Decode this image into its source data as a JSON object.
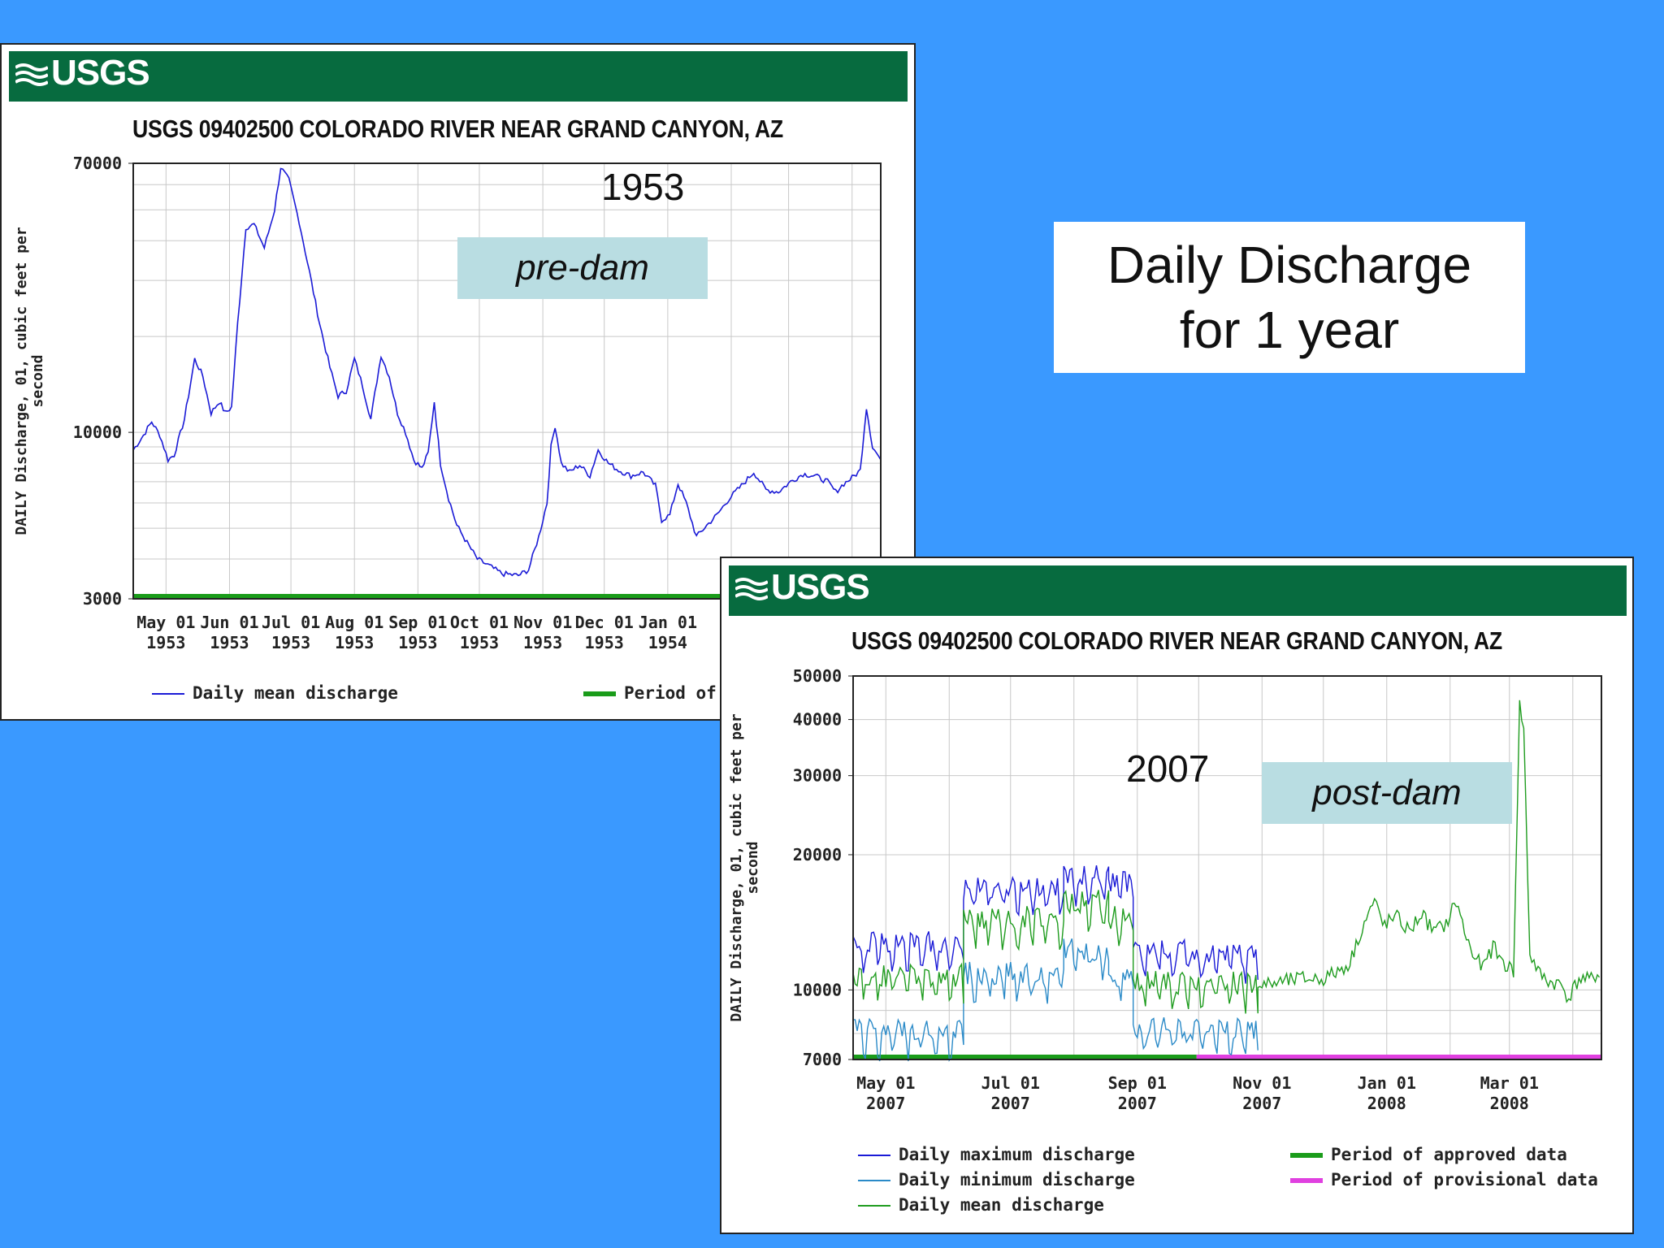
{
  "slide_title": {
    "line1": "Daily Discharge",
    "line2": "for 1 year"
  },
  "logo_text": "USGS",
  "colors": {
    "background": "#3a99ff",
    "usgs_green": "#076b3f",
    "max_series": "#1a1ad6",
    "min_series": "#2a8ac8",
    "mean_series": "#1f9c1f",
    "approved": "#1a9c1a",
    "provisional": "#e040e0",
    "label_box": "#b9dde2"
  },
  "chart_data": [
    {
      "type": "line",
      "station_title": "USGS 09402500 COLORADO RIVER NEAR GRAND CANYON, AZ",
      "year_annotation": "1953",
      "period_annotation": "pre-dam",
      "ylabel_line1": "DAILY Discharge, 01, cubic feet per",
      "ylabel_line2": "second",
      "y_scale": "log",
      "ylim": [
        3000,
        70000
      ],
      "yticks": [
        "70000",
        "10000",
        "3000"
      ],
      "ytick_values": [
        70000,
        10000,
        3000
      ],
      "x_tick_labels": [
        [
          "May 01",
          "1953"
        ],
        [
          "Jun 01",
          "1953"
        ],
        [
          "Jul 01",
          "1953"
        ],
        [
          "Aug 01",
          "1953"
        ],
        [
          "Sep 01",
          "1953"
        ],
        [
          "Oct 01",
          "1953"
        ],
        [
          "Nov 01",
          "1953"
        ],
        [
          "Dec 01",
          "1953"
        ],
        [
          "Jan 01",
          "1954"
        ]
      ],
      "x_range": [
        "1953-04-15",
        "1954-04-15"
      ],
      "grid": true,
      "legend": [
        {
          "label": "Daily mean discharge",
          "color": "#1a1ad6",
          "kind": "line"
        },
        {
          "label": "Period of",
          "color": "#1a9c1a",
          "kind": "bar"
        }
      ],
      "series": [
        {
          "name": "Daily mean discharge",
          "color": "#1a1ad6",
          "points": [
            [
              "1953-04-15",
              8800
            ],
            [
              "1953-04-20",
              9800
            ],
            [
              "1953-04-24",
              10800
            ],
            [
              "1953-04-28",
              9800
            ],
            [
              "1953-05-02",
              8200
            ],
            [
              "1953-05-05",
              8500
            ],
            [
              "1953-05-10",
              11000
            ],
            [
              "1953-05-15",
              17000
            ],
            [
              "1953-05-19",
              15000
            ],
            [
              "1953-05-23",
              11500
            ],
            [
              "1953-05-27",
              12500
            ],
            [
              "1953-05-30",
              11500
            ],
            [
              "1953-06-02",
              12000
            ],
            [
              "1953-06-05",
              22000
            ],
            [
              "1953-06-09",
              44000
            ],
            [
              "1953-06-13",
              45000
            ],
            [
              "1953-06-18",
              38000
            ],
            [
              "1953-06-23",
              50000
            ],
            [
              "1953-06-26",
              68000
            ],
            [
              "1953-06-30",
              62000
            ],
            [
              "1953-07-05",
              46000
            ],
            [
              "1953-07-10",
              32000
            ],
            [
              "1953-07-15",
              22000
            ],
            [
              "1953-07-20",
              16000
            ],
            [
              "1953-07-24",
              13000
            ],
            [
              "1953-07-28",
              13500
            ],
            [
              "1953-08-01",
              17000
            ],
            [
              "1953-08-05",
              14000
            ],
            [
              "1953-08-09",
              11000
            ],
            [
              "1953-08-14",
              17500
            ],
            [
              "1953-08-18",
              15000
            ],
            [
              "1953-08-22",
              11500
            ],
            [
              "1953-08-26",
              10000
            ],
            [
              "1953-08-30",
              8200
            ],
            [
              "1953-09-03",
              7700
            ],
            [
              "1953-09-06",
              8600
            ],
            [
              "1953-09-09",
              12500
            ],
            [
              "1953-09-12",
              8000
            ],
            [
              "1953-09-16",
              6200
            ],
            [
              "1953-09-20",
              5100
            ],
            [
              "1953-09-25",
              4500
            ],
            [
              "1953-09-30",
              4000
            ],
            [
              "1953-10-06",
              3800
            ],
            [
              "1953-10-12",
              3600
            ],
            [
              "1953-10-20",
              3550
            ],
            [
              "1953-10-25",
              3700
            ],
            [
              "1953-10-30",
              4700
            ],
            [
              "1953-11-03",
              6000
            ],
            [
              "1953-11-05",
              9000
            ],
            [
              "1953-11-07",
              10500
            ],
            [
              "1953-11-10",
              8000
            ],
            [
              "1953-11-14",
              7500
            ],
            [
              "1953-11-19",
              7900
            ],
            [
              "1953-11-24",
              7300
            ],
            [
              "1953-11-28",
              8800
            ],
            [
              "1953-12-03",
              8000
            ],
            [
              "1953-12-08",
              7600
            ],
            [
              "1953-12-14",
              7300
            ],
            [
              "1953-12-20",
              7500
            ],
            [
              "1953-12-26",
              6800
            ],
            [
              "1953-12-29",
              5300
            ],
            [
              "1954-01-02",
              5500
            ],
            [
              "1954-01-06",
              6900
            ],
            [
              "1954-01-10",
              6000
            ],
            [
              "1954-01-15",
              4700
            ],
            [
              "1954-01-20",
              5100
            ],
            [
              "1954-01-25",
              5500
            ],
            [
              "1954-01-31",
              6200
            ],
            [
              "1954-02-06",
              6800
            ],
            [
              "1954-02-12",
              7500
            ],
            [
              "1954-02-18",
              6600
            ],
            [
              "1954-02-24",
              6500
            ],
            [
              "1954-03-02",
              7000
            ],
            [
              "1954-03-08",
              7400
            ],
            [
              "1954-03-14",
              7300
            ],
            [
              "1954-03-20",
              7000
            ],
            [
              "1954-03-24",
              6500
            ],
            [
              "1954-03-28",
              6900
            ],
            [
              "1954-04-01",
              7200
            ],
            [
              "1954-04-05",
              7600
            ],
            [
              "1954-04-08",
              12000
            ],
            [
              "1954-04-11",
              9000
            ],
            [
              "1954-04-15",
              8200
            ]
          ]
        }
      ],
      "approved_period": [
        "1953-04-15",
        "1954-04-15"
      ]
    },
    {
      "type": "line",
      "station_title": "USGS 09402500 COLORADO RIVER NEAR GRAND CANYON, AZ",
      "year_annotation": "2007",
      "period_annotation": "post-dam",
      "ylabel_line1": "DAILY Discharge, 01, cubic feet per",
      "ylabel_line2": "second",
      "y_scale": "log",
      "ylim": [
        7000,
        50000
      ],
      "yticks": [
        "50000",
        "40000",
        "30000",
        "20000",
        "10000",
        "7000"
      ],
      "ytick_values": [
        50000,
        40000,
        30000,
        20000,
        10000,
        7000
      ],
      "x_tick_labels": [
        [
          "May 01",
          "2007"
        ],
        [
          "Jul 01",
          "2007"
        ],
        [
          "Sep 01",
          "2007"
        ],
        [
          "Nov 01",
          "2007"
        ],
        [
          "Jan 01",
          "2008"
        ],
        [
          "Mar 01",
          "2008"
        ]
      ],
      "x_range": [
        "2007-04-15",
        "2008-04-15"
      ],
      "grid": true,
      "legend": [
        {
          "label": "Daily maximum discharge",
          "color": "#1a1ad6",
          "kind": "line"
        },
        {
          "label": "Daily minimum discharge",
          "color": "#2a8ac8",
          "kind": "line"
        },
        {
          "label": "Daily mean discharge",
          "color": "#1f9c1f",
          "kind": "line"
        },
        {
          "label": "Period of approved data",
          "color": "#1a9c1a",
          "kind": "bar"
        },
        {
          "label": "Period of provisional data",
          "color": "#e040e0",
          "kind": "bar"
        }
      ],
      "segments": [
        {
          "start": "2007-04-15",
          "end": "2007-06-08",
          "max": 12800,
          "mean": 10800,
          "min": 8200,
          "amp": 1
        },
        {
          "start": "2007-06-08",
          "end": "2007-07-27",
          "max": 16800,
          "mean": 14500,
          "min": 10900,
          "amp": 1
        },
        {
          "start": "2007-07-27",
          "end": "2007-08-18",
          "max": 18000,
          "mean": 15800,
          "min": 12300,
          "amp": 1
        },
        {
          "start": "2007-08-18",
          "end": "2007-08-30",
          "max": 17500,
          "mean": 14500,
          "min": 10800,
          "amp": 1
        },
        {
          "start": "2007-08-30",
          "end": "2007-10-30",
          "max": 12200,
          "mean": 10400,
          "min": 8200,
          "amp": 1
        }
      ],
      "mean_only": [
        [
          "2007-10-30",
          10200
        ],
        [
          "2007-11-10",
          10400
        ],
        [
          "2007-11-20",
          10600
        ],
        [
          "2007-12-01",
          10600
        ],
        [
          "2007-12-08",
          11000
        ],
        [
          "2007-12-14",
          11500
        ],
        [
          "2007-12-20",
          13800
        ],
        [
          "2007-12-26",
          15800
        ],
        [
          "2007-12-30",
          14000
        ],
        [
          "2008-01-06",
          14500
        ],
        [
          "2008-01-12",
          13500
        ],
        [
          "2008-01-18",
          14800
        ],
        [
          "2008-01-24",
          13500
        ],
        [
          "2008-01-30",
          14000
        ],
        [
          "2008-02-04",
          15800
        ],
        [
          "2008-02-08",
          13500
        ],
        [
          "2008-02-12",
          12000
        ],
        [
          "2008-02-17",
          11200
        ],
        [
          "2008-02-22",
          12500
        ],
        [
          "2008-02-27",
          11500
        ],
        [
          "2008-03-03",
          11000
        ],
        [
          "2008-03-06",
          43000
        ],
        [
          "2008-03-08",
          38000
        ],
        [
          "2008-03-11",
          12000
        ],
        [
          "2008-03-16",
          10800
        ],
        [
          "2008-03-21",
          10400
        ],
        [
          "2008-03-26",
          10300
        ],
        [
          "2008-03-30",
          9600
        ],
        [
          "2008-04-04",
          10600
        ],
        [
          "2008-04-09",
          10500
        ],
        [
          "2008-04-15",
          11000
        ]
      ],
      "approved_period": [
        "2007-04-15",
        "2007-09-30"
      ],
      "provisional_period": [
        "2007-09-30",
        "2008-04-15"
      ]
    }
  ]
}
